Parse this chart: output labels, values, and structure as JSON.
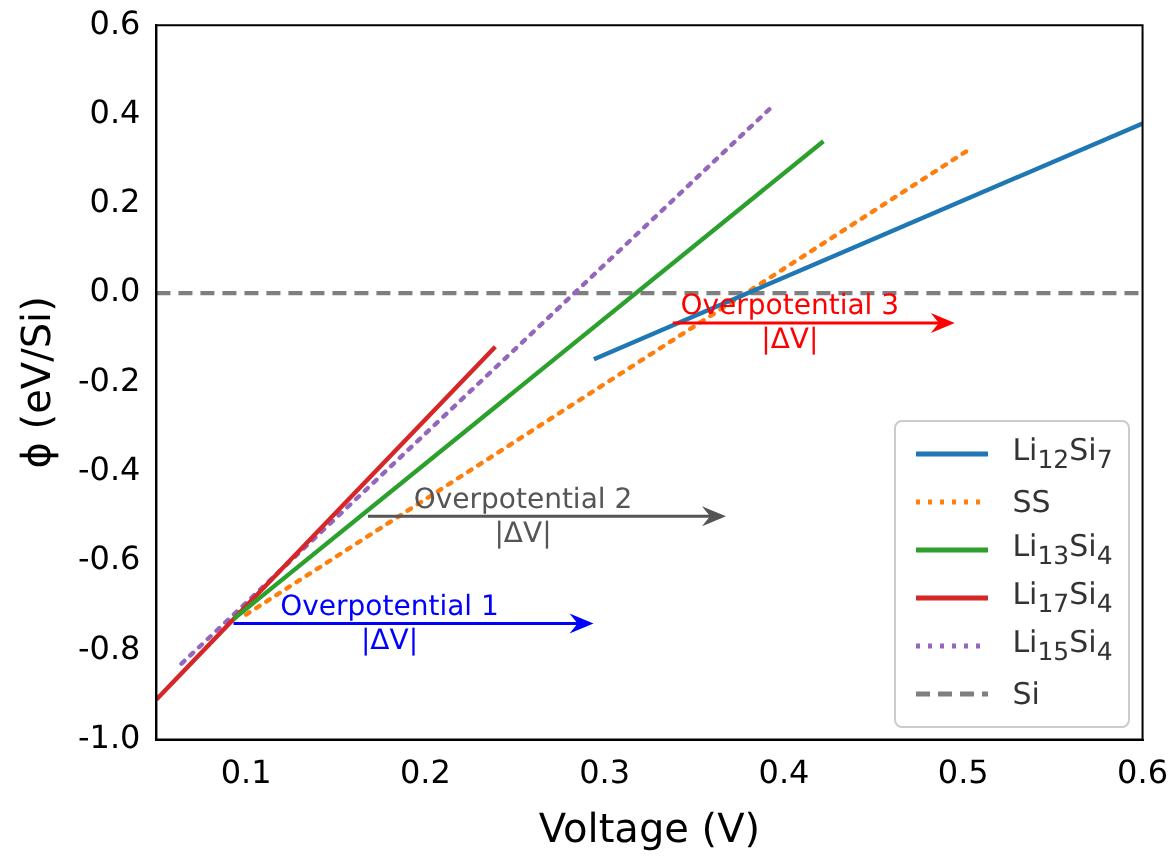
{
  "chart_data": {
    "type": "line",
    "xlabel": "Voltage (V)",
    "ylabel": "ϕ (eV/Si)",
    "xlim": [
      0.05,
      0.6
    ],
    "xticks": [
      0.1,
      0.2,
      0.3,
      0.4,
      0.5,
      0.6
    ],
    "ylim": [
      -1.0,
      0.6
    ],
    "yticks": [
      {
        "value": -1.0,
        "label": "-1.0"
      },
      -0.8,
      -0.6,
      -0.4,
      -0.2,
      {
        "value": 0.0,
        "label": "0.0"
      },
      0.2,
      0.4,
      0.6
    ],
    "legend": "bottom right",
    "grid": false,
    "marker": "none",
    "series": [
      {
        "name": "Li$_{12}$Si$_{7}$",
        "color": "#1f77b4",
        "line_style": "solid",
        "x": [
          0.294,
          0.6
        ],
        "values": [
          -0.148,
          0.38
        ]
      },
      {
        "name": "SS",
        "color": "#ff7f0e",
        "line_style": "dotted",
        "x": [
          0.1,
          0.505
        ],
        "values": [
          -0.72,
          0.326
        ]
      },
      {
        "name": "Li$_{13}$Si$_{4}$",
        "color": "#2ca02c",
        "line_style": "solid",
        "x": [
          0.093,
          0.422
        ],
        "values": [
          -0.73,
          0.34
        ]
      },
      {
        "name": "Li$_{17}$Si$_{4}$",
        "color": "#d62728",
        "line_style": "solid",
        "x": [
          0.05,
          0.239
        ],
        "values": [
          -0.91,
          -0.12
        ]
      },
      {
        "name": "Li$_{15}$Si$_{4}$",
        "color": "#9467bd",
        "line_style": "dotted",
        "x": [
          0.064,
          0.394
        ],
        "values": [
          -0.83,
          0.42
        ]
      },
      {
        "name": "Si",
        "color": "#7f7f7f",
        "line_style": "dashed",
        "x": [
          0.05,
          0.6
        ],
        "values": [
          0.0,
          0.0
        ]
      }
    ],
    "annotations": [
      {
        "text": "Overpotential 1\n|ΔV|",
        "x": 0.093,
        "y": -0.74
      },
      {
        "text": "Overpotential 2\n|ΔV|",
        "x": 0.168,
        "y": -0.5
      },
      {
        "text": "Overpotential 3\n|ΔV|",
        "x": 0.338,
        "y": -0.067
      }
    ]
  }
}
